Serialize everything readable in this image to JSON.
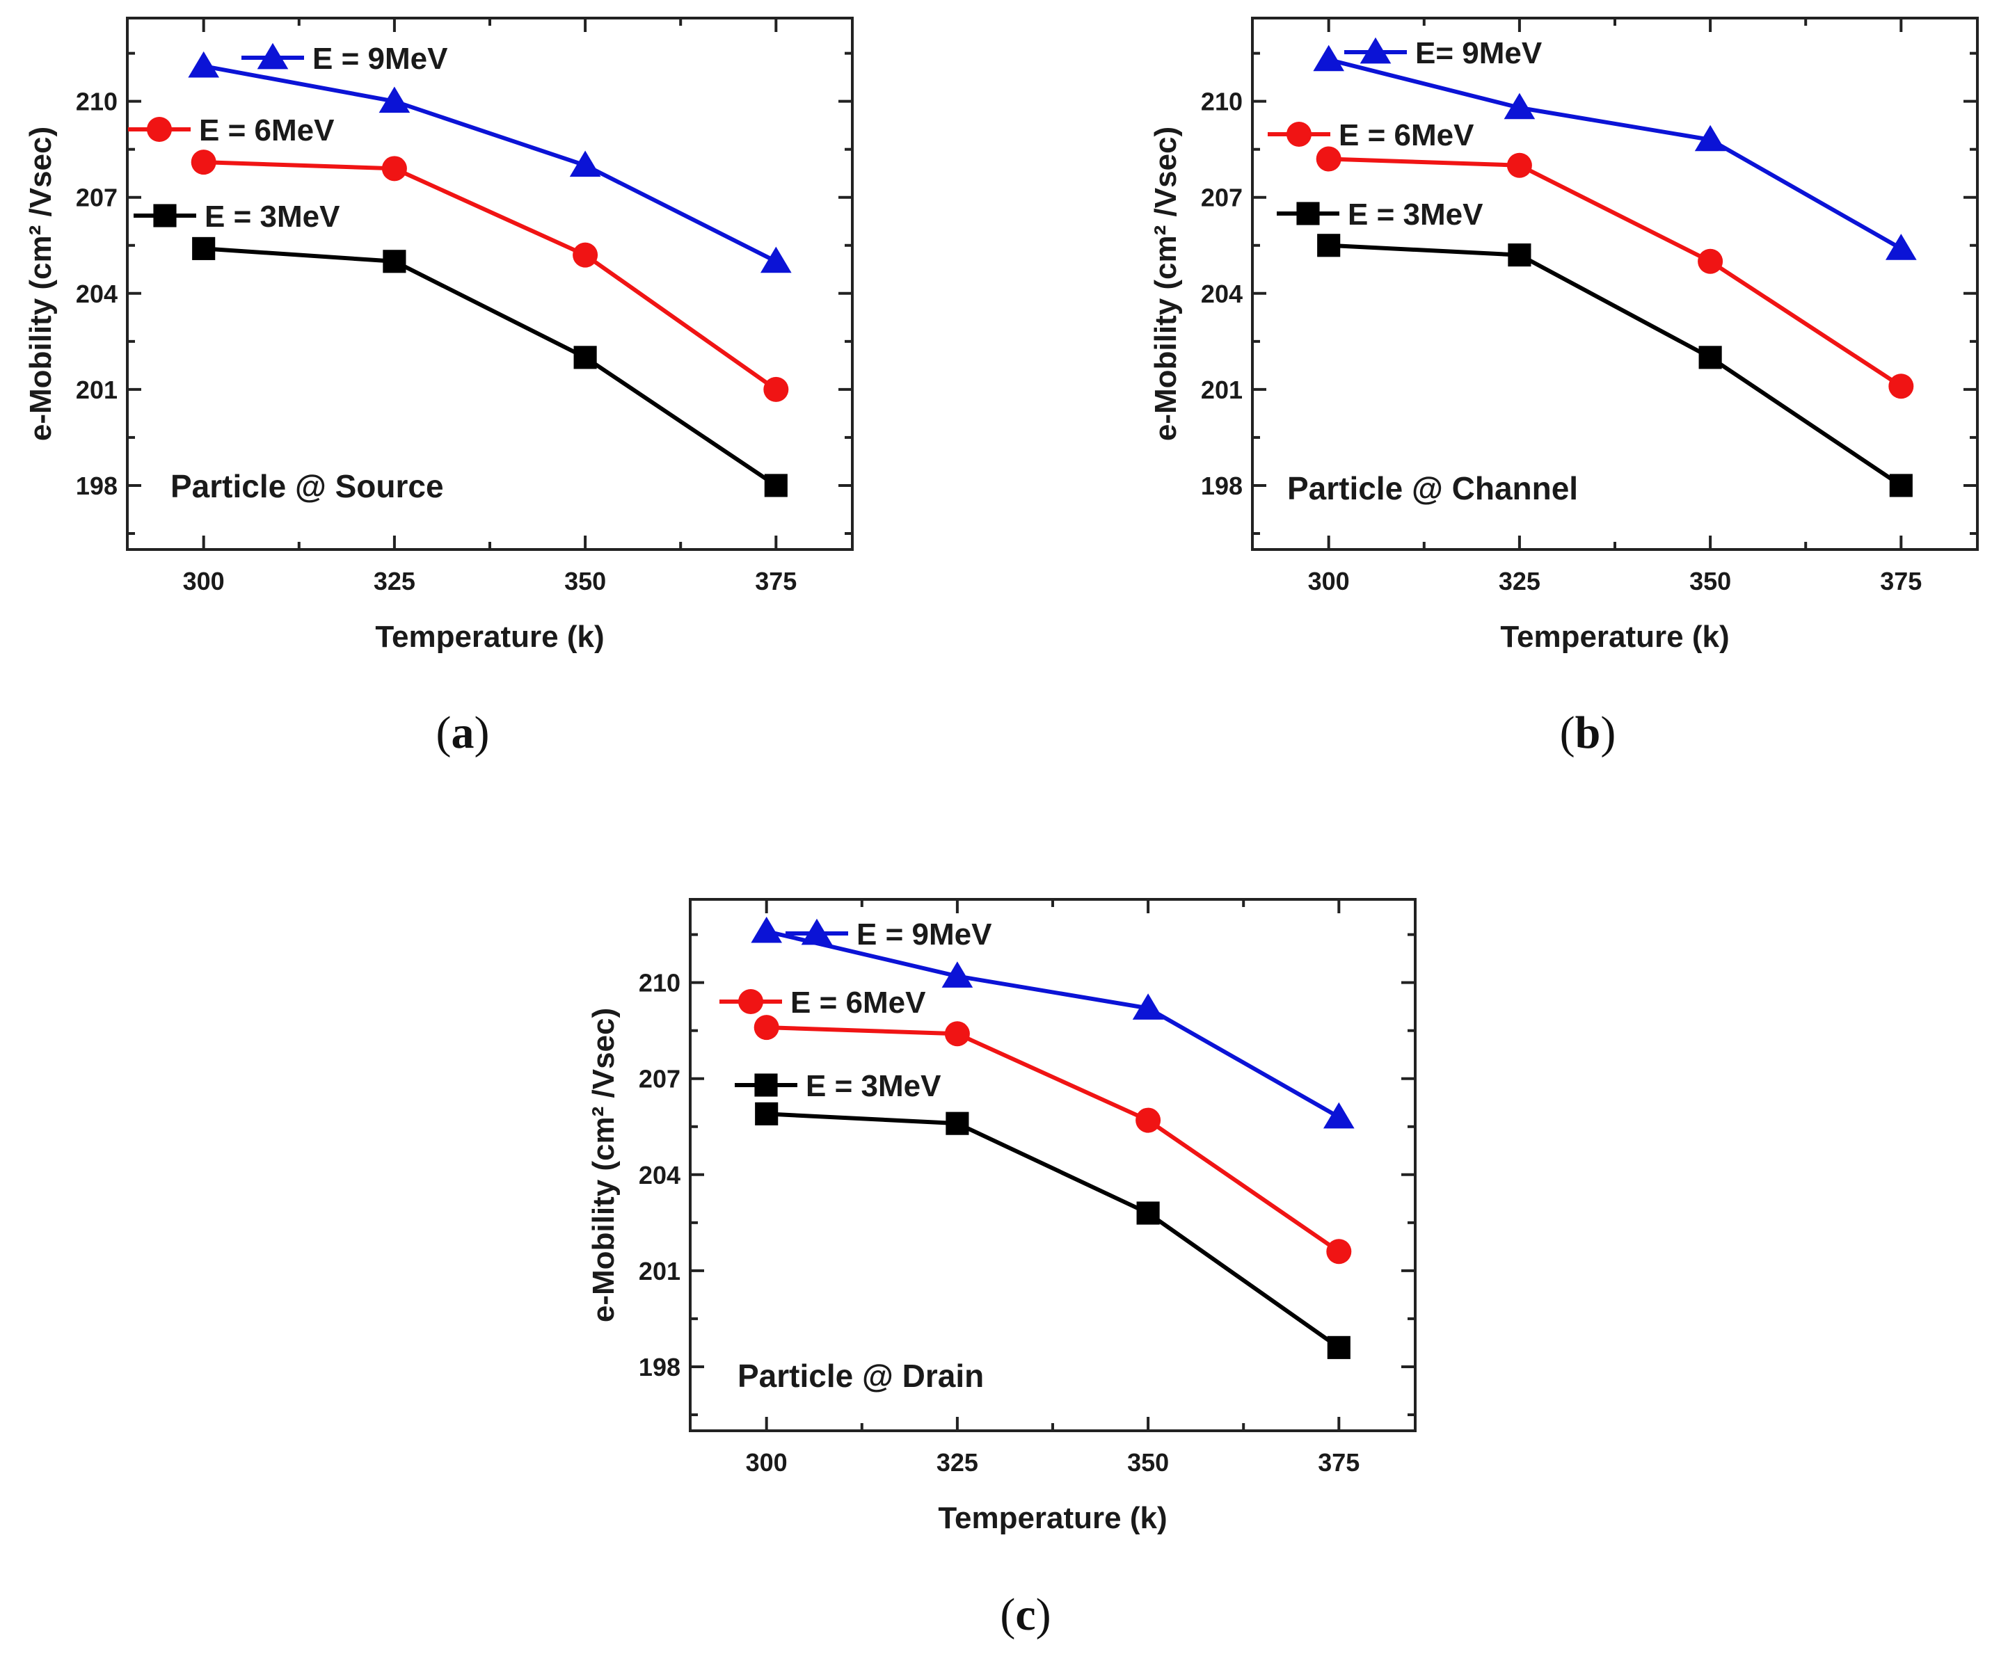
{
  "chart_data": [
    {
      "type": "line",
      "panel_label": "a",
      "annotation": "Particle @ Source",
      "xlabel": "Temperature (k)",
      "ylabel": "e-Mobility (cm² /Vsec)",
      "x": [
        300,
        325,
        350,
        375
      ],
      "xticks": [
        300,
        325,
        350,
        375
      ],
      "yticks": [
        198,
        201,
        204,
        207,
        210
      ],
      "xlim": [
        290,
        385
      ],
      "ylim": [
        196,
        212.6
      ],
      "legend_position": "top-left",
      "series": [
        {
          "name": "E = 9MeV",
          "color": "#0b13d6",
          "marker": "triangle",
          "values": [
            211.1,
            210.0,
            208.0,
            205.0
          ]
        },
        {
          "name": "E = 6MeV",
          "color": "#f01414",
          "marker": "circle",
          "values": [
            208.1,
            207.9,
            205.2,
            201.0
          ]
        },
        {
          "name": "E = 3MeV",
          "color": "#000000",
          "marker": "square",
          "values": [
            205.4,
            205.0,
            202.0,
            198.0
          ]
        }
      ]
    },
    {
      "type": "line",
      "panel_label": "b",
      "annotation": "Particle @ Channel",
      "xlabel": "Temperature (k)",
      "ylabel": "e-Mobility (cm² /Vsec)",
      "x": [
        300,
        325,
        350,
        375
      ],
      "xticks": [
        300,
        325,
        350,
        375
      ],
      "yticks": [
        198,
        201,
        204,
        207,
        210
      ],
      "xlim": [
        290,
        385
      ],
      "ylim": [
        196,
        212.6
      ],
      "legend_position": "top-left",
      "series": [
        {
          "name": "E= 9MeV",
          "color": "#0b13d6",
          "marker": "triangle",
          "values": [
            211.3,
            209.8,
            208.8,
            205.4
          ]
        },
        {
          "name": "E = 6MeV",
          "color": "#f01414",
          "marker": "circle",
          "values": [
            208.2,
            208.0,
            205.0,
            201.1
          ]
        },
        {
          "name": "E = 3MeV",
          "color": "#000000",
          "marker": "square",
          "values": [
            205.5,
            205.2,
            202.0,
            198.0
          ]
        }
      ]
    },
    {
      "type": "line",
      "panel_label": "c",
      "annotation": "Particle @ Drain",
      "xlabel": "Temperature (k)",
      "ylabel": "e-Mobility (cm² /Vsec)",
      "x": [
        300,
        325,
        350,
        375
      ],
      "xticks": [
        300,
        325,
        350,
        375
      ],
      "yticks": [
        198,
        201,
        204,
        207,
        210
      ],
      "xlim": [
        290,
        385
      ],
      "ylim": [
        196,
        212.6
      ],
      "legend_position": "top-left",
      "series": [
        {
          "name": "E = 9MeV",
          "color": "#0b13d6",
          "marker": "triangle",
          "values": [
            211.6,
            210.2,
            209.2,
            205.8
          ]
        },
        {
          "name": "E = 6MeV",
          "color": "#f01414",
          "marker": "circle",
          "values": [
            208.6,
            208.4,
            205.7,
            201.6
          ]
        },
        {
          "name": "E = 3MeV",
          "color": "#000000",
          "marker": "square",
          "values": [
            205.9,
            205.6,
            202.8,
            198.6
          ]
        }
      ]
    }
  ]
}
